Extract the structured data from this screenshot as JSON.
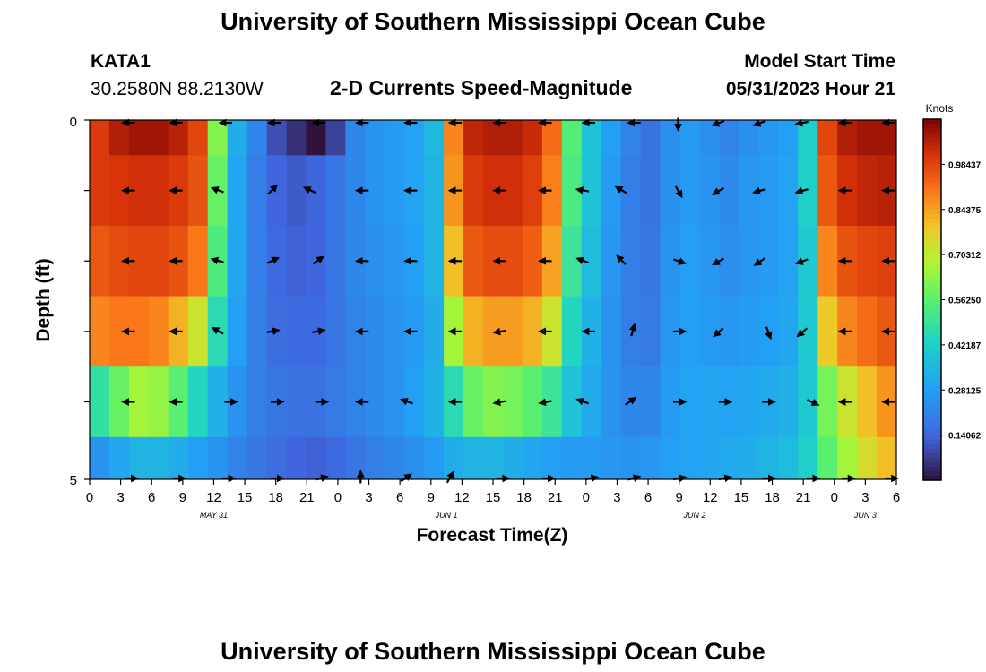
{
  "page": {
    "title": "University of Southern Mississippi Ocean Cube",
    "title_repeat": "University of Southern Mississippi Ocean Cube",
    "station_id": "KATA1",
    "coordinates": "30.2580N  88.2130W",
    "plot_subtitle": "2-D Currents Speed-Magnitude",
    "model_start_label": "Model Start Time",
    "model_start_value": "05/31/2023 Hour 21"
  },
  "colorbar": {
    "unit": "Knots",
    "min": 0.0,
    "max": 1.125,
    "tick_labels": [
      "0.98437",
      "0.84375",
      "0.70312",
      "0.56250",
      "0.42187",
      "0.28125",
      "0.14062"
    ],
    "tick_values": [
      0.984375,
      0.84375,
      0.703125,
      0.5625,
      0.421875,
      0.28125,
      0.140625
    ]
  },
  "chart_data": {
    "type": "heatmap",
    "title": "2-D Currents Speed-Magnitude",
    "xlabel": "Forecast Time(Z)",
    "ylabel": "Depth (ft)",
    "y_tick_labels": [
      "0",
      "5"
    ],
    "ylim": [
      0,
      5
    ],
    "x_tick_labels": [
      "0",
      "3",
      "6",
      "9",
      "12",
      "15",
      "18",
      "21",
      "0",
      "3",
      "6",
      "9",
      "12",
      "15",
      "18",
      "21",
      "0",
      "3",
      "6",
      "9",
      "12",
      "15",
      "18",
      "21",
      "0",
      "3",
      "6"
    ],
    "xlim": [
      0,
      78
    ],
    "date_labels": [
      {
        "text": "MAY 31",
        "hour": 12
      },
      {
        "text": "JUN 1",
        "hour": 34.5
      },
      {
        "text": "JUN 2",
        "hour": 58.5
      },
      {
        "text": "JUN 3",
        "hour": 75
      }
    ],
    "unit": "Knots",
    "layers": [
      {
        "depth_index": 0,
        "speed_knots": [
          1.0,
          1.06,
          1.08,
          1.08,
          1.05,
          0.98,
          0.62,
          0.32,
          0.22,
          0.1,
          0.05,
          0.0,
          0.08,
          0.22,
          0.25,
          0.27,
          0.29,
          0.35,
          0.88,
          1.04,
          1.06,
          1.06,
          1.03,
          0.92,
          0.55,
          0.38,
          0.28,
          0.21,
          0.17,
          0.24,
          0.27,
          0.24,
          0.21,
          0.24,
          0.26,
          0.28,
          0.42,
          0.98,
          1.06,
          1.08,
          1.08
        ]
      },
      {
        "depth_index": 1,
        "speed_knots": [
          1.0,
          1.01,
          1.02,
          1.02,
          1.0,
          0.96,
          0.58,
          0.3,
          0.2,
          0.14,
          0.12,
          0.14,
          0.18,
          0.22,
          0.25,
          0.27,
          0.29,
          0.34,
          0.86,
          1.0,
          1.02,
          1.02,
          0.99,
          0.89,
          0.53,
          0.38,
          0.27,
          0.2,
          0.17,
          0.24,
          0.27,
          0.25,
          0.23,
          0.26,
          0.27,
          0.29,
          0.42,
          0.95,
          1.02,
          1.04,
          1.05
        ]
      },
      {
        "depth_index": 2,
        "speed_knots": [
          0.95,
          0.97,
          0.98,
          0.98,
          0.96,
          0.9,
          0.54,
          0.3,
          0.2,
          0.15,
          0.13,
          0.14,
          0.18,
          0.22,
          0.24,
          0.26,
          0.28,
          0.34,
          0.8,
          0.95,
          0.97,
          0.97,
          0.94,
          0.84,
          0.5,
          0.36,
          0.26,
          0.2,
          0.18,
          0.25,
          0.28,
          0.26,
          0.24,
          0.26,
          0.27,
          0.29,
          0.4,
          0.88,
          0.96,
          0.98,
          0.99
        ]
      },
      {
        "depth_index": 3,
        "speed_knots": [
          0.88,
          0.9,
          0.9,
          0.88,
          0.82,
          0.72,
          0.46,
          0.28,
          0.2,
          0.16,
          0.15,
          0.15,
          0.18,
          0.21,
          0.23,
          0.25,
          0.27,
          0.32,
          0.66,
          0.82,
          0.85,
          0.85,
          0.82,
          0.72,
          0.44,
          0.33,
          0.25,
          0.2,
          0.19,
          0.26,
          0.28,
          0.27,
          0.26,
          0.27,
          0.28,
          0.3,
          0.4,
          0.78,
          0.88,
          0.92,
          0.95
        ]
      },
      {
        "depth_index": 4,
        "speed_knots": [
          0.48,
          0.58,
          0.66,
          0.64,
          0.56,
          0.44,
          0.33,
          0.25,
          0.2,
          0.18,
          0.17,
          0.17,
          0.19,
          0.21,
          0.23,
          0.25,
          0.28,
          0.33,
          0.46,
          0.58,
          0.62,
          0.6,
          0.56,
          0.5,
          0.38,
          0.31,
          0.25,
          0.22,
          0.22,
          0.27,
          0.29,
          0.3,
          0.29,
          0.3,
          0.31,
          0.33,
          0.4,
          0.6,
          0.72,
          0.8,
          0.86
        ]
      },
      {
        "depth_index": 5,
        "speed_knots": [
          0.25,
          0.3,
          0.34,
          0.34,
          0.32,
          0.28,
          0.25,
          0.21,
          0.18,
          0.16,
          0.14,
          0.13,
          0.15,
          0.18,
          0.2,
          0.22,
          0.24,
          0.27,
          0.32,
          0.34,
          0.34,
          0.32,
          0.3,
          0.28,
          0.27,
          0.27,
          0.26,
          0.25,
          0.26,
          0.28,
          0.29,
          0.3,
          0.31,
          0.32,
          0.34,
          0.36,
          0.42,
          0.56,
          0.66,
          0.74,
          0.8
        ]
      }
    ],
    "arrows": [
      {
        "layer": 0,
        "hour": 3.9,
        "dir": 180
      },
      {
        "layer": 0,
        "hour": 8.5,
        "dir": 180
      },
      {
        "layer": 0,
        "hour": 13.3,
        "dir": 180
      },
      {
        "layer": 0,
        "hour": 18,
        "dir": 180
      },
      {
        "layer": 0,
        "hour": 22.3,
        "dir": 180
      },
      {
        "layer": 0,
        "hour": 26.5,
        "dir": 180
      },
      {
        "layer": 0,
        "hour": 31.2,
        "dir": 180
      },
      {
        "layer": 0,
        "hour": 35.5,
        "dir": 180
      },
      {
        "layer": 0,
        "hour": 39.8,
        "dir": 180
      },
      {
        "layer": 0,
        "hour": 44.2,
        "dir": 180
      },
      {
        "layer": 0,
        "hour": 48.4,
        "dir": 180
      },
      {
        "layer": 0,
        "hour": 52.8,
        "dir": 180
      },
      {
        "layer": 0,
        "hour": 56.9,
        "dir": 270
      },
      {
        "layer": 0,
        "hour": 60.9,
        "dir": 200
      },
      {
        "layer": 0,
        "hour": 64.9,
        "dir": 200
      },
      {
        "layer": 0,
        "hour": 69,
        "dir": 190
      },
      {
        "layer": 0,
        "hour": 73.2,
        "dir": 180
      },
      {
        "layer": 0,
        "hour": 77.4,
        "dir": 180
      },
      {
        "layer": 1,
        "hour": 3.9,
        "dir": 180
      },
      {
        "layer": 1,
        "hour": 8.5,
        "dir": 180
      },
      {
        "layer": 1,
        "hour": 12.5,
        "dir": 160
      },
      {
        "layer": 1,
        "hour": 17.6,
        "dir": 45
      },
      {
        "layer": 1,
        "hour": 21.4,
        "dir": 155
      },
      {
        "layer": 1,
        "hour": 26.5,
        "dir": 180
      },
      {
        "layer": 1,
        "hour": 31.2,
        "dir": 180
      },
      {
        "layer": 1,
        "hour": 35.5,
        "dir": 180
      },
      {
        "layer": 1,
        "hour": 39.8,
        "dir": 180
      },
      {
        "layer": 1,
        "hour": 44.2,
        "dir": 180
      },
      {
        "layer": 1,
        "hour": 47.8,
        "dir": 170
      },
      {
        "layer": 1,
        "hour": 51.5,
        "dir": 150
      },
      {
        "layer": 1,
        "hour": 56.9,
        "dir": 300
      },
      {
        "layer": 1,
        "hour": 60.9,
        "dir": 210
      },
      {
        "layer": 1,
        "hour": 64.9,
        "dir": 195
      },
      {
        "layer": 1,
        "hour": 69,
        "dir": 195
      },
      {
        "layer": 1,
        "hour": 73.2,
        "dir": 180
      },
      {
        "layer": 1,
        "hour": 77.4,
        "dir": 180
      },
      {
        "layer": 2,
        "hour": 3.9,
        "dir": 180
      },
      {
        "layer": 2,
        "hour": 8.5,
        "dir": 180
      },
      {
        "layer": 2,
        "hour": 12.5,
        "dir": 165
      },
      {
        "layer": 2,
        "hour": 17.6,
        "dir": 25
      },
      {
        "layer": 2,
        "hour": 22,
        "dir": 35
      },
      {
        "layer": 2,
        "hour": 26.5,
        "dir": 180
      },
      {
        "layer": 2,
        "hour": 31.2,
        "dir": 180
      },
      {
        "layer": 2,
        "hour": 35.5,
        "dir": 180
      },
      {
        "layer": 2,
        "hour": 39.8,
        "dir": 180
      },
      {
        "layer": 2,
        "hour": 44.2,
        "dir": 180
      },
      {
        "layer": 2,
        "hour": 47.8,
        "dir": 160
      },
      {
        "layer": 2,
        "hour": 51.5,
        "dir": 135
      },
      {
        "layer": 2,
        "hour": 56.9,
        "dir": 340
      },
      {
        "layer": 2,
        "hour": 60.9,
        "dir": 210
      },
      {
        "layer": 2,
        "hour": 64.9,
        "dir": 215
      },
      {
        "layer": 2,
        "hour": 69,
        "dir": 200
      },
      {
        "layer": 2,
        "hour": 73.2,
        "dir": 180
      },
      {
        "layer": 2,
        "hour": 77.4,
        "dir": 180
      },
      {
        "layer": 3,
        "hour": 3.9,
        "dir": 180
      },
      {
        "layer": 3,
        "hour": 8.5,
        "dir": 180
      },
      {
        "layer": 3,
        "hour": 12.5,
        "dir": 150
      },
      {
        "layer": 3,
        "hour": 17.6,
        "dir": 10
      },
      {
        "layer": 3,
        "hour": 22,
        "dir": 10
      },
      {
        "layer": 3,
        "hour": 26.5,
        "dir": 180
      },
      {
        "layer": 3,
        "hour": 31.2,
        "dir": 180
      },
      {
        "layer": 3,
        "hour": 35.5,
        "dir": 180
      },
      {
        "layer": 3,
        "hour": 39.8,
        "dir": 190
      },
      {
        "layer": 3,
        "hour": 44.2,
        "dir": 180
      },
      {
        "layer": 3,
        "hour": 48.4,
        "dir": 180
      },
      {
        "layer": 3,
        "hour": 52.5,
        "dir": 75
      },
      {
        "layer": 3,
        "hour": 56.9,
        "dir": 0
      },
      {
        "layer": 3,
        "hour": 60.9,
        "dir": 220
      },
      {
        "layer": 3,
        "hour": 65.6,
        "dir": 290
      },
      {
        "layer": 3,
        "hour": 69,
        "dir": 220
      },
      {
        "layer": 3,
        "hour": 73.2,
        "dir": 180
      },
      {
        "layer": 3,
        "hour": 77.4,
        "dir": 180
      },
      {
        "layer": 4,
        "hour": 3.9,
        "dir": 180
      },
      {
        "layer": 4,
        "hour": 8.5,
        "dir": 180
      },
      {
        "layer": 4,
        "hour": 13.5,
        "dir": 0
      },
      {
        "layer": 4,
        "hour": 18,
        "dir": 0
      },
      {
        "layer": 4,
        "hour": 22.3,
        "dir": 0
      },
      {
        "layer": 4,
        "hour": 26.5,
        "dir": 180
      },
      {
        "layer": 4,
        "hour": 30.8,
        "dir": 160
      },
      {
        "layer": 4,
        "hour": 35.5,
        "dir": 180
      },
      {
        "layer": 4,
        "hour": 39.8,
        "dir": 190
      },
      {
        "layer": 4,
        "hour": 44.2,
        "dir": 190
      },
      {
        "layer": 4,
        "hour": 47.8,
        "dir": 160
      },
      {
        "layer": 4,
        "hour": 52.2,
        "dir": 35
      },
      {
        "layer": 4,
        "hour": 56.9,
        "dir": 0
      },
      {
        "layer": 4,
        "hour": 61.3,
        "dir": 0
      },
      {
        "layer": 4,
        "hour": 65.5,
        "dir": 0
      },
      {
        "layer": 4,
        "hour": 69.8,
        "dir": 335
      },
      {
        "layer": 4,
        "hour": 73.2,
        "dir": 180
      },
      {
        "layer": 4,
        "hour": 77.4,
        "dir": 180
      },
      {
        "layer": 5,
        "hour": 3.9,
        "dir": 0
      },
      {
        "layer": 5,
        "hour": 8.5,
        "dir": 0
      },
      {
        "layer": 5,
        "hour": 13.3,
        "dir": 0
      },
      {
        "layer": 5,
        "hour": 18,
        "dir": 0
      },
      {
        "layer": 5,
        "hour": 22.3,
        "dir": 15
      },
      {
        "layer": 5,
        "hour": 26.2,
        "dir": 90
      },
      {
        "layer": 5,
        "hour": 30.5,
        "dir": 35
      },
      {
        "layer": 5,
        "hour": 34.8,
        "dir": 60
      },
      {
        "layer": 5,
        "hour": 39.8,
        "dir": 0
      },
      {
        "layer": 5,
        "hour": 44.2,
        "dir": 0
      },
      {
        "layer": 5,
        "hour": 48.4,
        "dir": 10
      },
      {
        "layer": 5,
        "hour": 52.5,
        "dir": 15
      },
      {
        "layer": 5,
        "hour": 56.9,
        "dir": 10
      },
      {
        "layer": 5,
        "hour": 61.3,
        "dir": 10
      },
      {
        "layer": 5,
        "hour": 65.5,
        "dir": 0
      },
      {
        "layer": 5,
        "hour": 69.8,
        "dir": 0
      },
      {
        "layer": 5,
        "hour": 73.2,
        "dir": 0
      },
      {
        "layer": 5,
        "hour": 77.4,
        "dir": 0
      }
    ]
  }
}
